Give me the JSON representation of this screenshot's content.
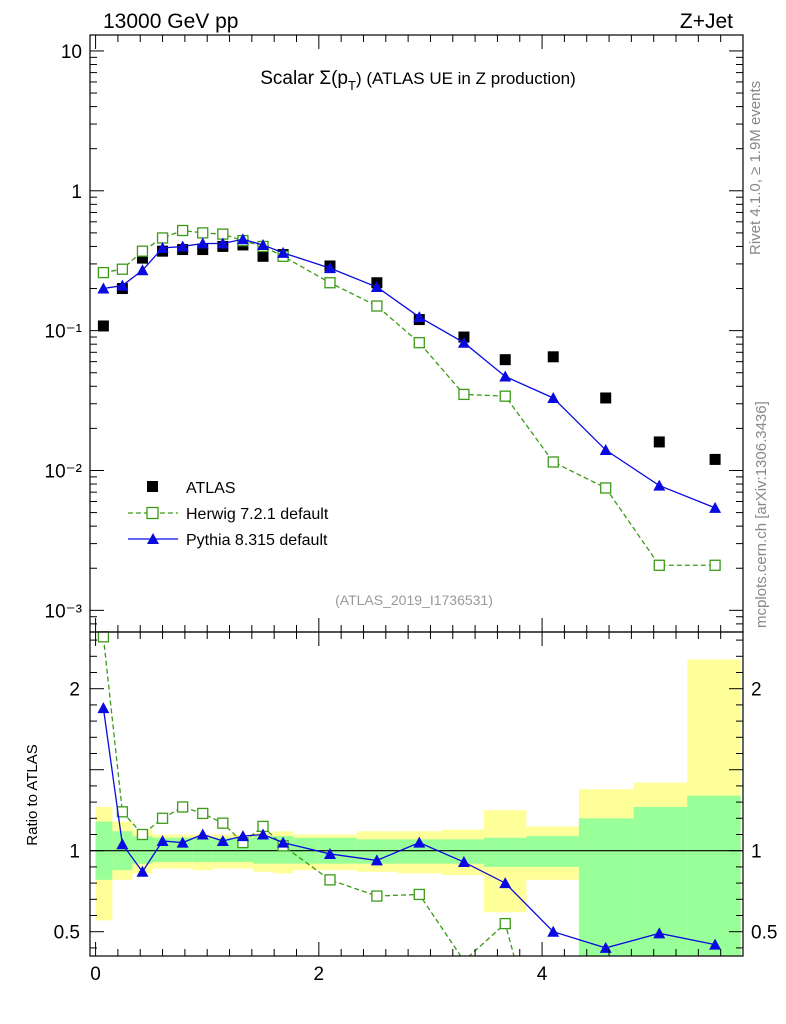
{
  "header": {
    "left": "13000 GeV pp",
    "right": "Z+Jet",
    "side_right": "Rivet 4.1.0, ≥ 1.9M events",
    "side_bottom": "mcplots.cern.ch [arXiv:1306.3436]"
  },
  "chart_data": {
    "type": "scatter",
    "title_prefix": "Scalar Σ(p",
    "title_sub": "T",
    "title_suffix": ") (ATLAS UE in Z production)",
    "analysis_id": "(ATLAS_2019_I1736531)",
    "xlim": [
      -0.05,
      5.8
    ],
    "top_panel": {
      "scale": "log",
      "ylim": [
        0.0007,
        13
      ],
      "y_ticks": [
        {
          "value": 10,
          "label": "10"
        },
        {
          "value": 1,
          "label": "1"
        },
        {
          "value": 0.1,
          "label": "10⁻¹"
        },
        {
          "value": 0.01,
          "label": "10⁻²"
        },
        {
          "value": 0.001,
          "label": "10⁻³"
        }
      ]
    },
    "ratio_panel": {
      "ylabel": "Ratio to ATLAS",
      "ylim": [
        0.35,
        2.35
      ],
      "y_ticks": [
        {
          "value": 0.5,
          "label": "0.5"
        },
        {
          "value": 1,
          "label": "1"
        },
        {
          "value": 2,
          "label": "2"
        }
      ],
      "x_ticks": [
        {
          "value": 0,
          "label": "0"
        },
        {
          "value": 2,
          "label": "2"
        },
        {
          "value": 4,
          "label": "4"
        }
      ],
      "band_inner": [
        {
          "x0": 0.0,
          "x1": 0.15,
          "lo": 0.82,
          "hi": 1.18
        },
        {
          "x0": 0.15,
          "x1": 0.33,
          "lo": 0.88,
          "hi": 1.12
        },
        {
          "x0": 0.33,
          "x1": 0.51,
          "lo": 0.92,
          "hi": 1.09
        },
        {
          "x0": 0.51,
          "x1": 0.69,
          "lo": 0.93,
          "hi": 1.08
        },
        {
          "x0": 0.69,
          "x1": 0.87,
          "lo": 0.93,
          "hi": 1.08
        },
        {
          "x0": 0.87,
          "x1": 1.05,
          "lo": 0.93,
          "hi": 1.08
        },
        {
          "x0": 1.05,
          "x1": 1.23,
          "lo": 0.93,
          "hi": 1.08
        },
        {
          "x0": 1.23,
          "x1": 1.41,
          "lo": 0.93,
          "hi": 1.08
        },
        {
          "x0": 1.41,
          "x1": 1.59,
          "lo": 0.92,
          "hi": 1.09
        },
        {
          "x0": 1.59,
          "x1": 1.77,
          "lo": 0.92,
          "hi": 1.09
        },
        {
          "x0": 1.77,
          "x1": 2.0,
          "lo": 0.92,
          "hi": 1.08
        },
        {
          "x0": 2.0,
          "x1": 2.34,
          "lo": 0.92,
          "hi": 1.08
        },
        {
          "x0": 2.34,
          "x1": 2.71,
          "lo": 0.92,
          "hi": 1.07
        },
        {
          "x0": 2.71,
          "x1": 3.1,
          "lo": 0.92,
          "hi": 1.07
        },
        {
          "x0": 3.1,
          "x1": 3.48,
          "lo": 0.92,
          "hi": 1.07
        },
        {
          "x0": 3.48,
          "x1": 3.86,
          "lo": 0.9,
          "hi": 1.08
        },
        {
          "x0": 3.86,
          "x1": 4.33,
          "lo": 0.9,
          "hi": 1.09
        },
        {
          "x0": 4.33,
          "x1": 4.82,
          "lo": 0.35,
          "hi": 1.2
        },
        {
          "x0": 4.82,
          "x1": 5.3,
          "lo": 0.35,
          "hi": 1.27
        },
        {
          "x0": 5.3,
          "x1": 5.78,
          "lo": 0.35,
          "hi": 1.34
        }
      ],
      "band_outer": [
        {
          "x0": 0.0,
          "x1": 0.15,
          "lo": 0.57,
          "hi": 1.27
        },
        {
          "x0": 0.15,
          "x1": 0.33,
          "lo": 0.82,
          "hi": 1.18
        },
        {
          "x0": 0.33,
          "x1": 0.51,
          "lo": 0.86,
          "hi": 1.13
        },
        {
          "x0": 0.51,
          "x1": 0.69,
          "lo": 0.89,
          "hi": 1.1
        },
        {
          "x0": 0.69,
          "x1": 0.87,
          "lo": 0.89,
          "hi": 1.1
        },
        {
          "x0": 0.87,
          "x1": 1.05,
          "lo": 0.88,
          "hi": 1.1
        },
        {
          "x0": 1.05,
          "x1": 1.23,
          "lo": 0.89,
          "hi": 1.1
        },
        {
          "x0": 1.23,
          "x1": 1.41,
          "lo": 0.89,
          "hi": 1.1
        },
        {
          "x0": 1.41,
          "x1": 1.59,
          "lo": 0.87,
          "hi": 1.11
        },
        {
          "x0": 1.59,
          "x1": 1.77,
          "lo": 0.86,
          "hi": 1.12
        },
        {
          "x0": 1.77,
          "x1": 2.0,
          "lo": 0.88,
          "hi": 1.1
        },
        {
          "x0": 2.0,
          "x1": 2.34,
          "lo": 0.88,
          "hi": 1.1
        },
        {
          "x0": 2.34,
          "x1": 2.71,
          "lo": 0.87,
          "hi": 1.12
        },
        {
          "x0": 2.71,
          "x1": 3.1,
          "lo": 0.86,
          "hi": 1.12
        },
        {
          "x0": 3.1,
          "x1": 3.48,
          "lo": 0.85,
          "hi": 1.13
        },
        {
          "x0": 3.48,
          "x1": 3.86,
          "lo": 0.62,
          "hi": 1.25
        },
        {
          "x0": 3.86,
          "x1": 4.33,
          "lo": 0.82,
          "hi": 1.15
        },
        {
          "x0": 4.33,
          "x1": 4.82,
          "lo": 0.35,
          "hi": 1.38
        },
        {
          "x0": 4.82,
          "x1": 5.3,
          "lo": 0.35,
          "hi": 1.42
        },
        {
          "x0": 5.3,
          "x1": 5.78,
          "lo": 0.35,
          "hi": 2.18
        }
      ]
    },
    "series": [
      {
        "name": "ATLAS",
        "color": "#000000",
        "marker": "square-filled",
        "x": [
          0.07,
          0.24,
          0.42,
          0.6,
          0.78,
          0.96,
          1.14,
          1.32,
          1.5,
          1.68,
          2.1,
          2.52,
          2.9,
          3.3,
          3.67,
          4.1,
          4.57,
          5.05,
          5.55
        ],
        "y": [
          0.108,
          0.2,
          0.33,
          0.37,
          0.38,
          0.38,
          0.4,
          0.41,
          0.34,
          0.35,
          0.29,
          0.22,
          0.12,
          0.09,
          0.062,
          0.065,
          0.033,
          0.016,
          0.012
        ]
      },
      {
        "name": "Herwig 7.2.1 default",
        "color": "#3b9b16",
        "marker": "square-open",
        "line": "dashed",
        "x": [
          0.07,
          0.24,
          0.42,
          0.6,
          0.78,
          0.96,
          1.14,
          1.32,
          1.5,
          1.68,
          2.1,
          2.52,
          2.9,
          3.3,
          3.67,
          4.1,
          4.57,
          5.05,
          5.55
        ],
        "y": [
          0.26,
          0.275,
          0.37,
          0.46,
          0.52,
          0.5,
          0.49,
          0.44,
          0.4,
          0.34,
          0.22,
          0.15,
          0.082,
          0.035,
          0.034,
          0.0115,
          0.0075,
          0.0021,
          0.0021
        ],
        "ratio_x": [
          0.07,
          0.24,
          0.42,
          0.6,
          0.78,
          0.96,
          1.14,
          1.32,
          1.5,
          1.68,
          2.1,
          2.52,
          2.9,
          3.3,
          3.67,
          3.78
        ],
        "ratio": [
          2.32,
          1.24,
          1.1,
          1.2,
          1.27,
          1.23,
          1.17,
          1.05,
          1.15,
          1.03,
          0.82,
          0.72,
          0.73,
          0.32,
          0.55,
          0.27
        ]
      },
      {
        "name": "Pythia 8.315 default",
        "color": "#0a0ae0",
        "marker": "triangle-filled",
        "line": "solid",
        "x": [
          0.07,
          0.24,
          0.42,
          0.6,
          0.78,
          0.96,
          1.14,
          1.32,
          1.5,
          1.68,
          2.1,
          2.52,
          2.9,
          3.3,
          3.67,
          4.1,
          4.57,
          5.05,
          5.55
        ],
        "y": [
          0.2,
          0.21,
          0.27,
          0.39,
          0.4,
          0.42,
          0.42,
          0.45,
          0.41,
          0.36,
          0.28,
          0.205,
          0.125,
          0.082,
          0.047,
          0.033,
          0.014,
          0.0078,
          0.0054
        ],
        "ratio": [
          1.88,
          1.04,
          0.87,
          1.06,
          1.05,
          1.1,
          1.06,
          1.09,
          1.1,
          1.05,
          0.98,
          0.94,
          1.05,
          0.93,
          0.8,
          0.5,
          0.4,
          0.49,
          0.42
        ]
      }
    ]
  }
}
